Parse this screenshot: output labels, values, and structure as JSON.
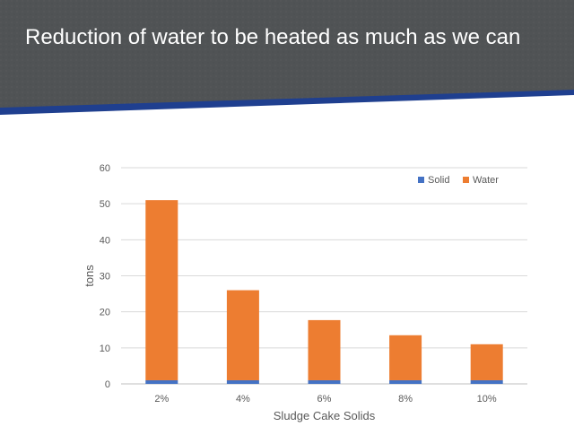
{
  "slide": {
    "title": "Reduction of water to be heated as much as we can"
  },
  "colors": {
    "banner": "#505355",
    "accent_stripe": "#1f3f8f",
    "solid": "#4472c4",
    "water": "#ed7d31",
    "grid": "#d9d9d9",
    "axis_text": "#595959"
  },
  "chart_data": {
    "type": "bar",
    "stacked": true,
    "categories": [
      "2%",
      "4%",
      "6%",
      "8%",
      "10%"
    ],
    "series": [
      {
        "name": "Solid",
        "values": [
          1,
          1,
          1,
          1,
          1
        ]
      },
      {
        "name": "Water",
        "values": [
          50,
          25,
          16.7,
          12.5,
          10
        ]
      }
    ],
    "title": "",
    "xlabel": "Sludge Cake Solids",
    "ylabel": "tons",
    "ylim": [
      0,
      60
    ],
    "yticks": [
      0,
      10,
      20,
      30,
      40,
      50,
      60
    ],
    "grid": true,
    "legend_position": "top-right"
  }
}
